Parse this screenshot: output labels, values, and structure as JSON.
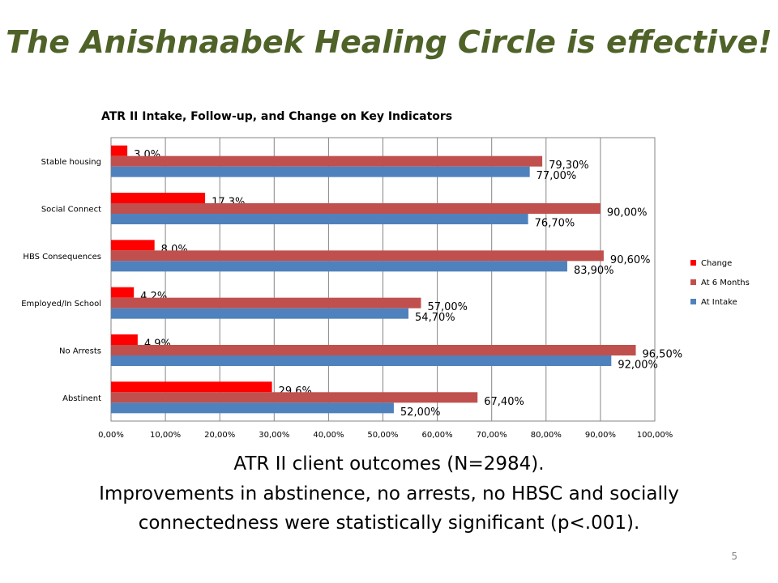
{
  "slide": {
    "title": "The Anishnaabek Healing Circle is effective!",
    "caption_line1": "ATR II client outcomes (N=2984).",
    "caption_line2": "Improvements in abstinence, no arrests, no HBSC and socially connectedness were statistically significant (p<.001).",
    "page_number": "5"
  },
  "chart_data": {
    "type": "bar",
    "orientation": "horizontal",
    "title": "ATR II Intake, Follow-up, and  Change on Key Indicators",
    "xlabel": "",
    "ylabel": "",
    "xlim": [
      0,
      100
    ],
    "x_ticks": [
      "0,00%",
      "10,00%",
      "20,00%",
      "30,00%",
      "40,00%",
      "50,00%",
      "60,00%",
      "70,00%",
      "80,00%",
      "90,00%",
      "100,00%"
    ],
    "grid": true,
    "legend_position": "right",
    "categories": [
      "Stable housing",
      "Social Connect",
      "HBS Consequences",
      "Employed/In School",
      "No Arrests",
      "Abstinent"
    ],
    "series": [
      {
        "name": "Change",
        "color": "#ff0000",
        "values": [
          3.0,
          17.3,
          8.0,
          4.2,
          4.9,
          29.6
        ],
        "labels": [
          "3,0%",
          "17,3%",
          "8,0%",
          "4,2%",
          "4,9%",
          "29,6%"
        ]
      },
      {
        "name": "At 6 Months",
        "color": "#c0504d",
        "values": [
          79.3,
          90.0,
          90.6,
          57.0,
          96.5,
          67.4
        ],
        "labels": [
          "79,30%",
          "90,00%",
          "90,60%",
          "57,00%",
          "96,50%",
          "67,40%"
        ]
      },
      {
        "name": "At Intake",
        "color": "#4f81bd",
        "values": [
          77.0,
          76.7,
          83.9,
          54.7,
          92.0,
          52.0
        ],
        "labels": [
          "77,00%",
          "76,70%",
          "83,90%",
          "54,70%",
          "92,00%",
          "52,00%"
        ]
      }
    ]
  }
}
